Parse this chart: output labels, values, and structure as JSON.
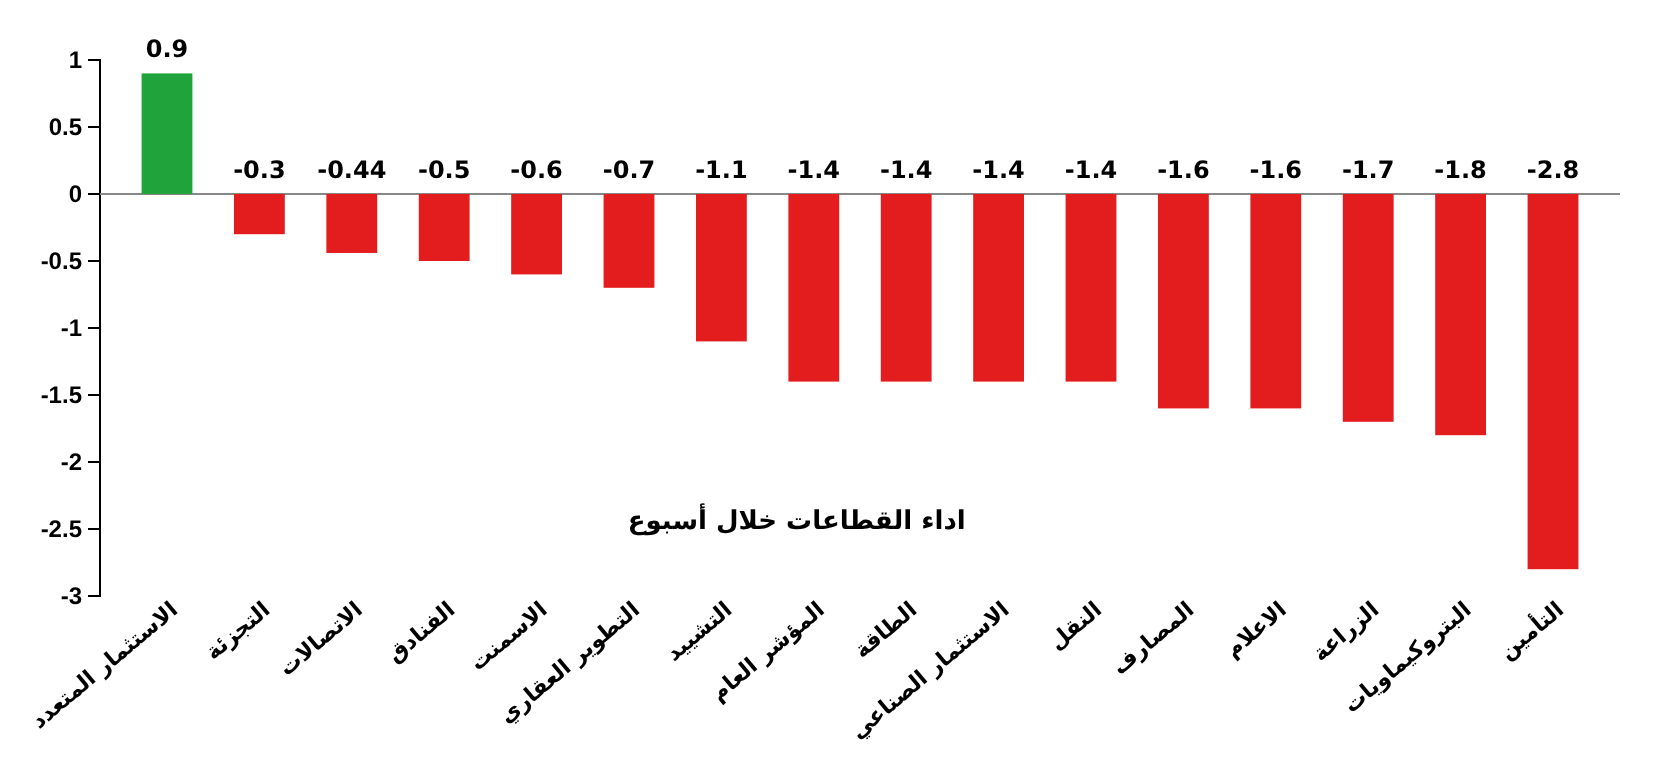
{
  "chart_data": {
    "type": "bar",
    "title": "اداء القطاعات خلال أسبوع",
    "categories": [
      "الاستثمار المتعدد",
      "التجزئة",
      "الاتصالات",
      "الفنادق",
      "الاسمنت",
      "التطوير العقاري",
      "التشييد",
      "المؤشر العام",
      "الطاقة",
      "الاستثمار الصناعي",
      "النقل",
      "المصارف",
      "الاعلام",
      "الزراعة",
      "البتروكيماويات",
      "التأمين"
    ],
    "values": [
      0.9,
      -0.3,
      -0.44,
      -0.5,
      -0.6,
      -0.7,
      -1.1,
      -1.4,
      -1.4,
      -1.4,
      -1.4,
      -1.6,
      -1.6,
      -1.7,
      -1.8,
      -2.8
    ],
    "colors": [
      "#1fa33a",
      "#e31d1d",
      "#e31d1d",
      "#e31d1d",
      "#e31d1d",
      "#e31d1d",
      "#e31d1d",
      "#e31d1d",
      "#e31d1d",
      "#e31d1d",
      "#e31d1d",
      "#e31d1d",
      "#e31d1d",
      "#e31d1d",
      "#e31d1d",
      "#e31d1d"
    ],
    "ylim": [
      -3,
      1
    ],
    "yticks": [
      -3,
      -2.5,
      -2,
      -1.5,
      -1,
      -0.5,
      0,
      0.5,
      1
    ],
    "data_labels": true,
    "grid": false,
    "ref_lines": [
      {
        "axis": "y",
        "value": 0,
        "color": "#888888"
      }
    ]
  }
}
